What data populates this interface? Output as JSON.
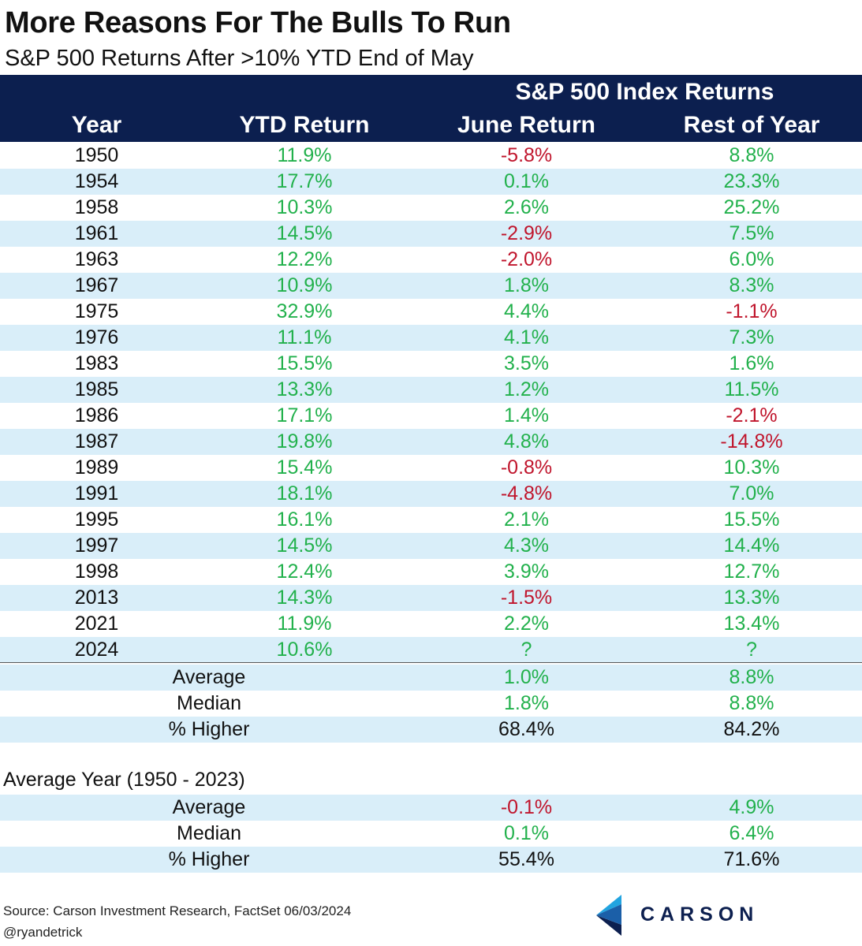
{
  "title": "More Reasons For The Bulls To Run",
  "subtitle": "S&P 500 Returns After >10% YTD End of May",
  "header": {
    "group_label": "S&P 500 Index Returns",
    "columns": [
      "Year",
      "YTD Return",
      "June Return",
      "Rest of Year"
    ]
  },
  "colors": {
    "header_bg": "#0c1f4f",
    "positive": "#22b14c",
    "negative": "#c0152c",
    "row_shade": "#d9eef9"
  },
  "chart_data": {
    "type": "table",
    "title": "More Reasons For The Bulls To Run",
    "subtitle": "S&P 500 Returns After >10% YTD End of May",
    "columns": [
      "Year",
      "YTD Return",
      "June Return",
      "Rest of Year"
    ],
    "rows": [
      [
        "1950",
        "11.9%",
        "-5.8%",
        "8.8%"
      ],
      [
        "1954",
        "17.7%",
        "0.1%",
        "23.3%"
      ],
      [
        "1958",
        "10.3%",
        "2.6%",
        "25.2%"
      ],
      [
        "1961",
        "14.5%",
        "-2.9%",
        "7.5%"
      ],
      [
        "1963",
        "12.2%",
        "-2.0%",
        "6.0%"
      ],
      [
        "1967",
        "10.9%",
        "1.8%",
        "8.3%"
      ],
      [
        "1975",
        "32.9%",
        "4.4%",
        "-1.1%"
      ],
      [
        "1976",
        "11.1%",
        "4.1%",
        "7.3%"
      ],
      [
        "1983",
        "15.5%",
        "3.5%",
        "1.6%"
      ],
      [
        "1985",
        "13.3%",
        "1.2%",
        "11.5%"
      ],
      [
        "1986",
        "17.1%",
        "1.4%",
        "-2.1%"
      ],
      [
        "1987",
        "19.8%",
        "4.8%",
        "-14.8%"
      ],
      [
        "1989",
        "15.4%",
        "-0.8%",
        "10.3%"
      ],
      [
        "1991",
        "18.1%",
        "-4.8%",
        "7.0%"
      ],
      [
        "1995",
        "16.1%",
        "2.1%",
        "15.5%"
      ],
      [
        "1997",
        "14.5%",
        "4.3%",
        "14.4%"
      ],
      [
        "1998",
        "12.4%",
        "3.9%",
        "12.7%"
      ],
      [
        "2013",
        "14.3%",
        "-1.5%",
        "13.3%"
      ],
      [
        "2021",
        "11.9%",
        "2.2%",
        "13.4%"
      ],
      [
        "2024",
        "10.6%",
        "?",
        "?"
      ]
    ],
    "summary": [
      [
        "Average",
        "1.0%",
        "8.8%"
      ],
      [
        "Median",
        "1.8%",
        "8.8%"
      ],
      [
        "% Higher",
        "68.4%",
        "84.2%"
      ]
    ],
    "average_year_heading": "Average Year (1950 - 2023)",
    "average_year": [
      [
        "Average",
        "-0.1%",
        "4.9%"
      ],
      [
        "Median",
        "0.1%",
        "6.4%"
      ],
      [
        "% Higher",
        "55.4%",
        "71.6%"
      ]
    ]
  },
  "footer": {
    "source": "Source: Carson Investment Research, FactSet 06/03/2024",
    "handle": "@ryandetrick",
    "logo_text": "CARSON"
  }
}
